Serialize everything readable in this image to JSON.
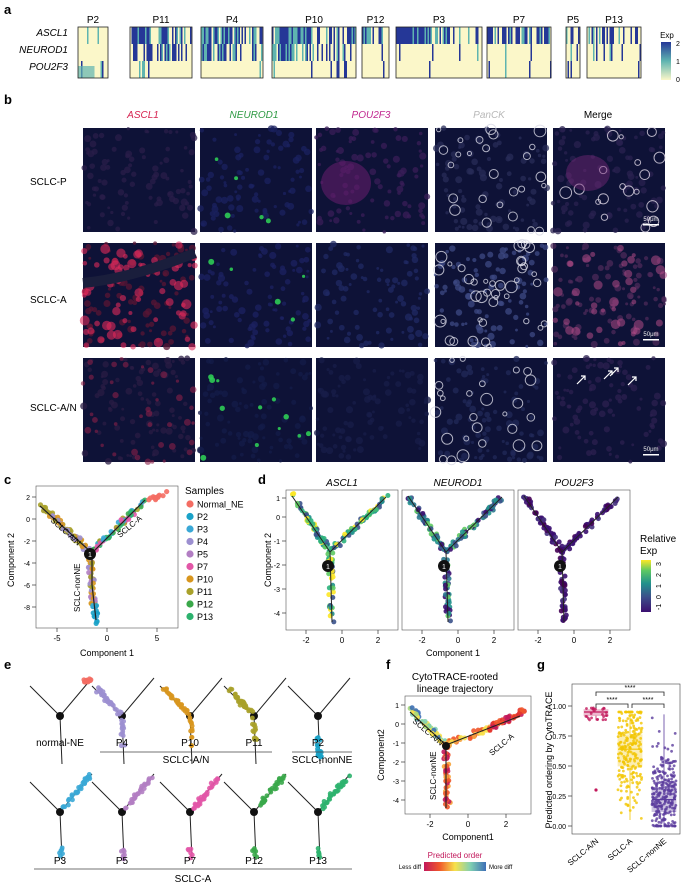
{
  "panels": {
    "a": "a",
    "b": "b",
    "c": "c",
    "d": "d",
    "e": "e",
    "f": "f",
    "g": "g"
  },
  "heatmap": {
    "genes": [
      "ASCL1",
      "NEUROD1",
      "POU2F3"
    ],
    "samples": [
      "P2",
      "P11",
      "P4",
      "P10",
      "P12",
      "P3",
      "P7",
      "P5",
      "P13"
    ],
    "legend_title": "Exp",
    "legend_ticks": [
      "2",
      "1",
      "0"
    ],
    "colors": {
      "low": "#fbf7c9",
      "mid": "#5fb4b0",
      "high": "#253797"
    }
  },
  "if": {
    "stains": [
      "ASCL1",
      "NEUROD1",
      "POU2F3",
      "PanCK",
      "Merge"
    ],
    "stain_colors": [
      "#d62350",
      "#2e9a43",
      "#c0268f",
      "#b8b8b8",
      "#222222"
    ],
    "rows": [
      "SCLC-P",
      "SCLC-A",
      "SCLC-A/N"
    ],
    "scale": "50μm"
  },
  "c": {
    "xlabel": "Component 1",
    "ylabel": "Component 2",
    "xticks": [
      "-5",
      "0",
      "5"
    ],
    "yticks": [
      "2",
      "0",
      "-2",
      "-4",
      "-6",
      "-8",
      "-10"
    ],
    "legend_title": "Samples",
    "legend": [
      {
        "name": "Normal_NE",
        "color": "#f46d63"
      },
      {
        "name": "P2",
        "color": "#1aa2c8"
      },
      {
        "name": "P3",
        "color": "#3aa8d6"
      },
      {
        "name": "P4",
        "color": "#9c8fd0"
      },
      {
        "name": "P5",
        "color": "#b27ec3"
      },
      {
        "name": "P7",
        "color": "#e257a7"
      },
      {
        "name": "P10",
        "color": "#d8961e"
      },
      {
        "name": "P11",
        "color": "#a9a12a"
      },
      {
        "name": "P12",
        "color": "#3aa84a"
      },
      {
        "name": "P13",
        "color": "#2db26e"
      }
    ],
    "branches": [
      "SCLC-A/N",
      "SCLC-A",
      "SCLC-nonNE"
    ],
    "node": "1"
  },
  "d": {
    "genes": [
      "ASCL1",
      "NEUROD1",
      "POU2F3"
    ],
    "xlabel": "Component 1",
    "ylabel": "Component 2",
    "xticks": [
      "-2",
      "0",
      "2"
    ],
    "yticks": [
      "1",
      "0",
      "-1",
      "-2",
      "-3",
      "-4"
    ],
    "legend_title": "Relative\nExp",
    "legend_ticks": [
      "3",
      "2",
      "1",
      "0",
      "-1"
    ]
  },
  "e": {
    "top": [
      "normal-NE",
      "P4",
      "P10",
      "P11",
      "P2"
    ],
    "bottom": [
      "P3",
      "P5",
      "P7",
      "P12",
      "P13"
    ],
    "group_a_n": "SCLC-A/N",
    "group_nonne": "SCLC-nonNE",
    "group_a": "SCLC-A"
  },
  "f": {
    "title": "CytoTRACE-rooted\nlineage trajectory",
    "xlabel": "Component1",
    "ylabel": "Component2",
    "xticks": [
      "-2",
      "0",
      "2"
    ],
    "yticks": [
      "1",
      "0",
      "-1",
      "-2",
      "-3",
      "-4"
    ],
    "branches": [
      "SCLC-A/N",
      "SCLC-A",
      "SCLC-nonNE"
    ],
    "legend_title": "Predicted order",
    "legend_left": "Less diff",
    "legend_right": "More diff"
  },
  "g": {
    "ylabel": "Predicted ordering by CytoTRACE",
    "categories": [
      "SCLC-A/N",
      "SCLC-A",
      "SCLC-nonNE"
    ],
    "yticks": [
      "0.00",
      "0.25",
      "0.50",
      "0.75",
      "1.00"
    ],
    "sig": [
      "****",
      "****",
      "****"
    ],
    "colors": [
      "#c2185b",
      "#f2c500",
      "#5b3c9e"
    ]
  }
}
